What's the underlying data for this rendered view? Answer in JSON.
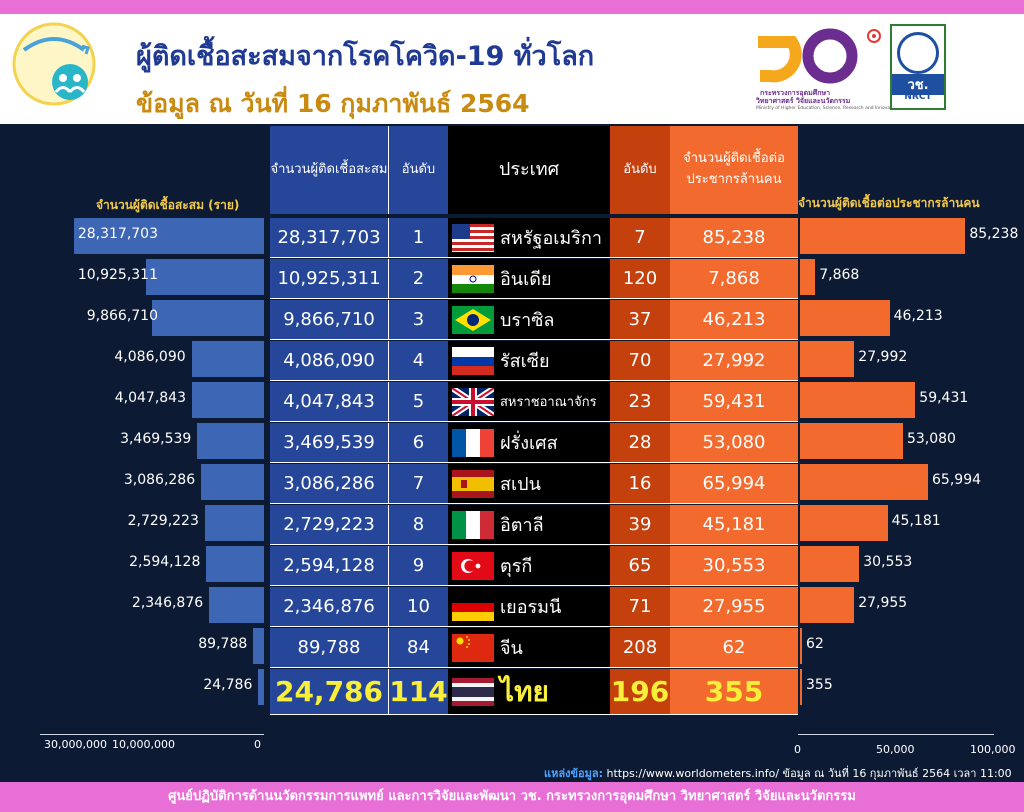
{
  "header": {
    "title": "ผู้ติดเชื้อสะสมจากโรคโควิด-19 ทั่วโลก",
    "subtitle": "ข้อมูล ณ วันที่ 16 กุมภาพันธ์ 2564",
    "ministry_line1": "กระทรวงการอุดมศึกษา",
    "ministry_line2": "วิทยาศาสตร์ วิจัยและนวัตกรรม",
    "ministry_en": "Ministry of Higher Education, Science, Research and Innovation",
    "nrct_th": "วช.",
    "nrct_en": "NRCT",
    "colors": {
      "title": "#1f3a93",
      "subtitle": "#c98a12",
      "band": "#e86fd6"
    }
  },
  "left_axis_title": "จำนวนผู้ติดเชื้อสะสม (ราย)",
  "right_axis_title": "จำนวนผู้ติดเชื้อต่อประชากรล้านคน",
  "left_ticks": [
    "30,000,000",
    "10,000,000",
    "0"
  ],
  "right_ticks": [
    "0",
    "50,000",
    "100,000"
  ],
  "table": {
    "headers": {
      "cumulative": "จำนวนผู้ติดเชื้อสะสม",
      "rank1": "อันดับ",
      "country": "ประเทศ",
      "rank2": "อันดับ",
      "per_million": "จำนวนผู้ติดเชื้อต่อประชากรล้านคน"
    },
    "rows": [
      {
        "cases": "28,317,703",
        "rank": "1",
        "country": "สหรัฐอเมริกา",
        "flag": "usa-flag",
        "pm_rank": "7",
        "per_million": "85,238"
      },
      {
        "cases": "10,925,311",
        "rank": "2",
        "country": "อินเดีย",
        "flag": "india-flag",
        "pm_rank": "120",
        "per_million": "7,868"
      },
      {
        "cases": "9,866,710",
        "rank": "3",
        "country": "บราซิล",
        "flag": "brazil-flag",
        "pm_rank": "37",
        "per_million": "46,213"
      },
      {
        "cases": "4,086,090",
        "rank": "4",
        "country": "รัสเซีย",
        "flag": "russia-flag",
        "pm_rank": "70",
        "per_million": "27,992"
      },
      {
        "cases": "4,047,843",
        "rank": "5",
        "country": "สหราชอาณาจักร",
        "flag": "uk-flag",
        "pm_rank": "23",
        "per_million": "59,431"
      },
      {
        "cases": "3,469,539",
        "rank": "6",
        "country": "ฝรั่งเศส",
        "flag": "france-flag",
        "pm_rank": "28",
        "per_million": "53,080"
      },
      {
        "cases": "3,086,286",
        "rank": "7",
        "country": "สเปน",
        "flag": "spain-flag",
        "pm_rank": "16",
        "per_million": "65,994"
      },
      {
        "cases": "2,729,223",
        "rank": "8",
        "country": "อิตาลี",
        "flag": "italy-flag",
        "pm_rank": "39",
        "per_million": "45,181"
      },
      {
        "cases": "2,594,128",
        "rank": "9",
        "country": "ตุรกี",
        "flag": "turkey-flag",
        "pm_rank": "65",
        "per_million": "30,553"
      },
      {
        "cases": "2,346,876",
        "rank": "10",
        "country": "เยอรมนี",
        "flag": "germany-flag",
        "pm_rank": "71",
        "per_million": "27,955"
      },
      {
        "cases": "89,788",
        "rank": "84",
        "country": "จีน",
        "flag": "china-flag",
        "pm_rank": "208",
        "per_million": "62"
      },
      {
        "cases": "24,786",
        "rank": "114",
        "country": "ไทย",
        "flag": "thailand-flag",
        "pm_rank": "196",
        "per_million": "355"
      }
    ]
  },
  "source": {
    "label": "แหล่งข้อมูล:",
    "text": "https://www.worldometers.info/ ข้อมูล ณ วันที่ 16 กุมภาพันธ์ 2564 เวลา 11:00 น."
  },
  "footer": "ศูนย์ปฏิบัติการด้านนวัตกรรมการแพทย์ และการวิจัยและพัฒนา  วช.   กระทรวงการอุดมศึกษา วิทยาศาสตร์ วิจัยและนวัตกรรม",
  "chart_data": [
    {
      "type": "bar",
      "orientation": "horizontal",
      "direction": "right-to-left",
      "title": "",
      "xlabel": "จำนวนผู้ติดเชื้อสะสม (ราย)",
      "categories": [
        "สหรัฐอเมริกา",
        "อินเดีย",
        "บราซิล",
        "รัสเซีย",
        "สหราชอาณาจักร",
        "ฝรั่งเศส",
        "สเปน",
        "อิตาลี",
        "ตุรกี",
        "เยอรมนี",
        "จีน",
        "ไทย"
      ],
      "values": [
        28317703,
        10925311,
        9866710,
        4086090,
        4047843,
        3469539,
        3086286,
        2729223,
        2594128,
        2346876,
        89788,
        24786
      ],
      "labels": [
        "28,317,703",
        "10,925,311",
        "9,866,710",
        "4,086,090",
        "4,047,843",
        "3,469,539",
        "3,086,286",
        "2,729,223",
        "2,594,128",
        "2,346,876",
        "89,788",
        "24,786"
      ],
      "xlim": [
        0,
        30000000
      ],
      "scale": "nonlinear",
      "color": "#3d66b5"
    },
    {
      "type": "bar",
      "orientation": "horizontal",
      "title": "",
      "xlabel": "จำนวนผู้ติดเชื้อต่อประชากรล้านคน",
      "categories": [
        "สหรัฐอเมริกา",
        "อินเดีย",
        "บราซิล",
        "รัสเซีย",
        "สหราชอาณาจักร",
        "ฝรั่งเศส",
        "สเปน",
        "อิตาลี",
        "ตุรกี",
        "เยอรมนี",
        "จีน",
        "ไทย"
      ],
      "values": [
        85238,
        7868,
        46213,
        27992,
        59431,
        53080,
        65994,
        45181,
        30553,
        27955,
        62,
        355
      ],
      "labels": [
        "85,238",
        "7,868",
        "46,213",
        "27,992",
        "59,431",
        "53,080",
        "65,994",
        "45,181",
        "30,553",
        "27,955",
        "62",
        "355"
      ],
      "xlim": [
        0,
        100000
      ],
      "color": "#f26a2e"
    }
  ]
}
